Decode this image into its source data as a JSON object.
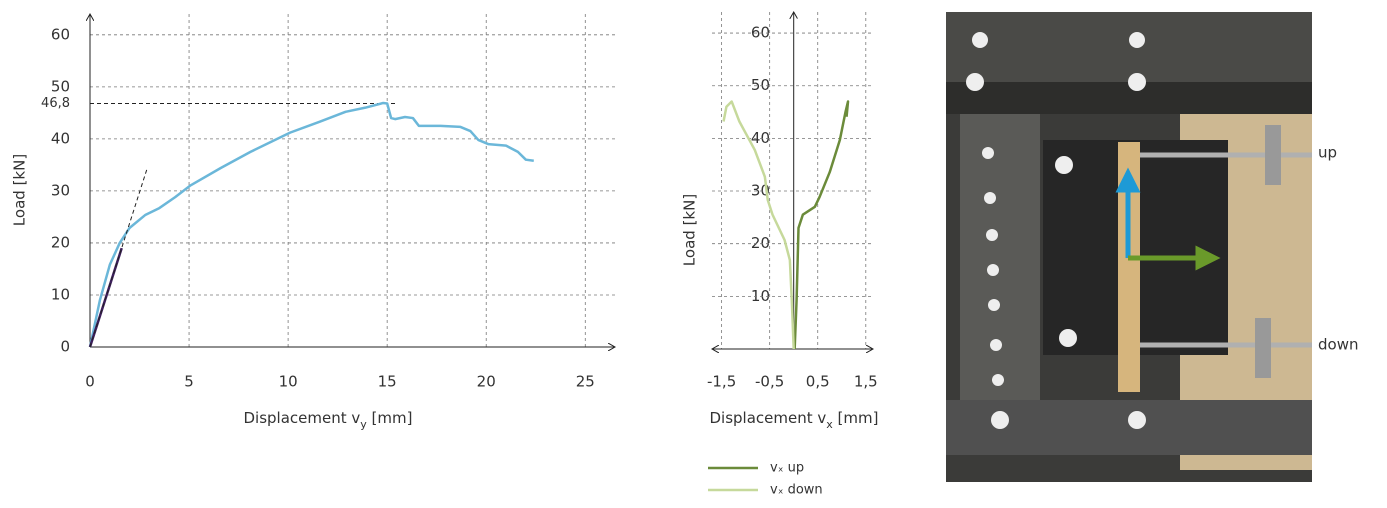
{
  "chart_data": [
    {
      "type": "line",
      "xlabel": [
        "Displacement v",
        "y",
        " [mm]"
      ],
      "ylabel": "Load [kN]",
      "xlim": [
        0,
        26.5
      ],
      "ylim": [
        0,
        64
      ],
      "xticks": [
        0,
        5,
        10,
        15,
        20,
        25
      ],
      "yticks": [
        0,
        10,
        20,
        30,
        40,
        50,
        60
      ],
      "grid": true,
      "reference_line": {
        "y": {
          "value": 46.8,
          "label": "46,8"
        },
        "x_end": 15.4
      },
      "series": [
        {
          "color": "#6bb7d9",
          "style": "solid",
          "x": [
            0,
            0.5,
            1.0,
            1.5,
            2.0,
            2.8,
            3.5,
            4.3,
            5.05,
            6.6,
            8.1,
            10.1,
            11.6,
            12.9,
            13.9,
            14.8,
            15.0,
            15.2,
            15.4,
            15.9,
            16.3,
            16.6,
            17.7,
            18.7,
            19.2,
            19.6,
            20.1,
            21.0,
            21.6,
            22.0,
            22.4
          ],
          "values": [
            0,
            9,
            15.8,
            20,
            22.9,
            25.4,
            26.7,
            28.8,
            31,
            34.4,
            37.5,
            41.2,
            43.3,
            45.2,
            46,
            46.9,
            46.8,
            44,
            43.8,
            44.2,
            44,
            42.5,
            42.5,
            42.3,
            41.5,
            39.8,
            39,
            38.7,
            37.5,
            36,
            35.8
          ]
        },
        {
          "color": "#3d1f5c",
          "style": "solid",
          "x": [
            0,
            1.6
          ],
          "values": [
            0,
            19
          ]
        },
        {
          "color": "#222222",
          "style": "dashed",
          "x": [
            0,
            2.9
          ],
          "values": [
            0,
            34.5
          ]
        }
      ]
    },
    {
      "type": "line",
      "xlabel": [
        "Displacement v",
        "x",
        " [mm]"
      ],
      "ylabel": "Load [kN]",
      "xlim": [
        -1.7,
        1.65
      ],
      "ylim": [
        0,
        64
      ],
      "xticks": [
        {
          "value": -1.5,
          "label": "-1,5"
        },
        {
          "value": -0.5,
          "label": "-0,5"
        },
        {
          "value": 0.5,
          "label": "0,5"
        },
        {
          "value": 1.5,
          "label": "1,5"
        }
      ],
      "yticks": [
        10,
        20,
        30,
        40,
        50,
        60
      ],
      "grid": true,
      "legend": "below",
      "series": [
        {
          "name": "vₓ up",
          "color": "#6b8b3a",
          "style": "solid",
          "x": [
            0.02,
            0.06,
            0.1,
            0.19,
            0.44,
            0.54,
            0.75,
            0.96,
            1.08,
            1.13,
            1.1
          ],
          "values": [
            0,
            9.3,
            23,
            25.5,
            27,
            28.9,
            33.6,
            39.7,
            45.1,
            47,
            44.1
          ]
        },
        {
          "name": "vₓ down",
          "color": "#c6d99b",
          "style": "solid",
          "x": [
            0,
            -0.04,
            -0.08,
            -0.19,
            -0.44,
            -0.54,
            -0.6,
            -0.81,
            -1.13,
            -1.29,
            -1.4,
            -1.46
          ],
          "values": [
            0,
            9.3,
            16.9,
            20.7,
            25.5,
            28.3,
            32.7,
            37.8,
            43.2,
            47,
            46,
            43.2
          ]
        }
      ]
    }
  ],
  "photo": {
    "labels": [
      "up",
      "down"
    ]
  }
}
